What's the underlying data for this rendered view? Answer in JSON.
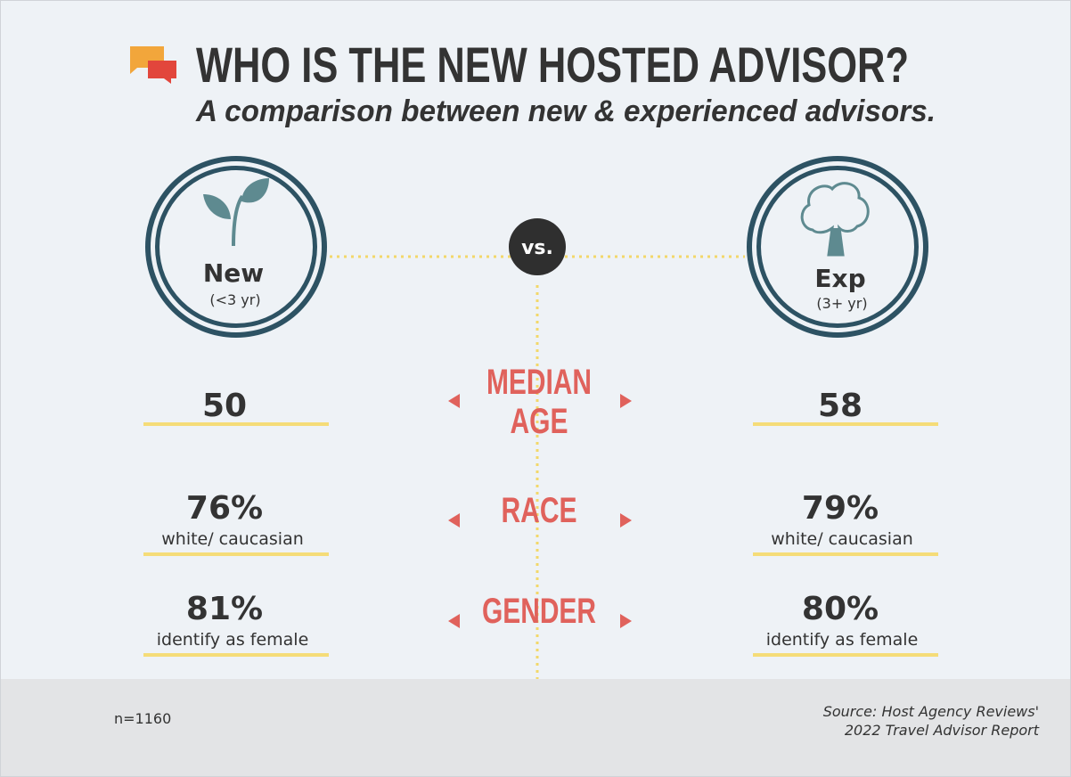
{
  "header": {
    "title": "WHO IS THE NEW HOSTED ADVISOR?",
    "subtitle": "A comparison between new & experienced advisors."
  },
  "groups": {
    "left": {
      "label": "New",
      "sublabel": "(<3 yr)"
    },
    "vs": "vs.",
    "right": {
      "label": "Exp",
      "sublabel": "(3+ yr)"
    }
  },
  "rows": [
    {
      "label": [
        "MEDIAN",
        "AGE"
      ],
      "left": {
        "value": "50"
      },
      "right": {
        "value": "58"
      }
    },
    {
      "label": [
        "RACE"
      ],
      "left": {
        "value": "76%",
        "note": "white/ caucasian"
      },
      "right": {
        "value": "79%",
        "note": "white/ caucasian"
      }
    },
    {
      "label": [
        "GENDER"
      ],
      "left": {
        "value": "81%",
        "note": "identify as female"
      },
      "right": {
        "value": "80%",
        "note": "identify as female"
      }
    }
  ],
  "footer": {
    "sample": "n=1160",
    "source": [
      "Source: Host Agency Reviews'",
      "2022 Travel Advisor Report"
    ]
  }
}
